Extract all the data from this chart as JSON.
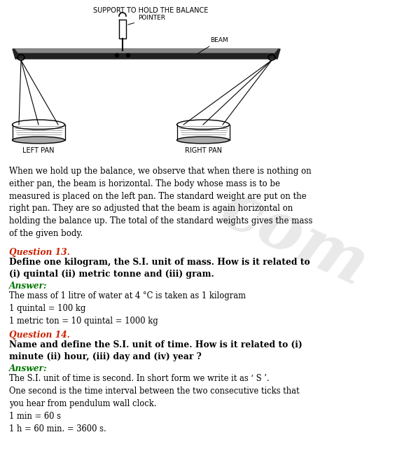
{
  "bg_color": "#ffffff",
  "watermark_text": "com",
  "watermark_color": "#c8c8c8",
  "watermark_alpha": 0.4,
  "diagram_label_top": "SUPPORT TO HOLD THE BALANCE",
  "diagram_label_pointer": "POINTER",
  "diagram_label_beam": "BEAM",
  "diagram_label_left": "LEFT PAN",
  "diagram_label_right": "RIGHT PAN",
  "body_text": "When we hold up the balance, we observe that when there is nothing on\neither pan, the beam is horizontal. The body whose mass is to be\nmeasured is placed on the left pan. The standard weight are put on the\nright pan. They are so adjusted that the beam is again horizontal on\nholding the balance up. The total of the standard weights gives the mass\nof the given body.",
  "q13_label": "Question 13.",
  "q13_color": "#cc2200",
  "q13_text": "Define one kilogram, the S.I. unit of mass. How is it related to\n(i) quintal (ii) metric tonne and (iii) gram.",
  "q13_answer_label": "Answer:",
  "q13_answer_color": "#007700",
  "q13_answer_text": "The mass of 1 litre of water at 4 °C is taken as 1 kilogram\n1 quintal = 100 kg\n1 metric ton = 10 quintal = 1000 kg",
  "q14_label": "Question 14.",
  "q14_color": "#cc2200",
  "q14_text": "Name and define the S.I. unit of time. How is it related to (i)\nminute (ii) hour, (iii) day and (iv) year ?",
  "q14_answer_label": "Answer:",
  "q14_answer_color": "#007700",
  "q14_answer_text": "The S.I. unit of time is second. In short form we write it as ‘ S ’.\nOne second is the time interval between the two consecutive ticks that\nyou hear from pendulum wall clock.\n1 min = 60 s\n1 h = 60 min. = 3600 s."
}
